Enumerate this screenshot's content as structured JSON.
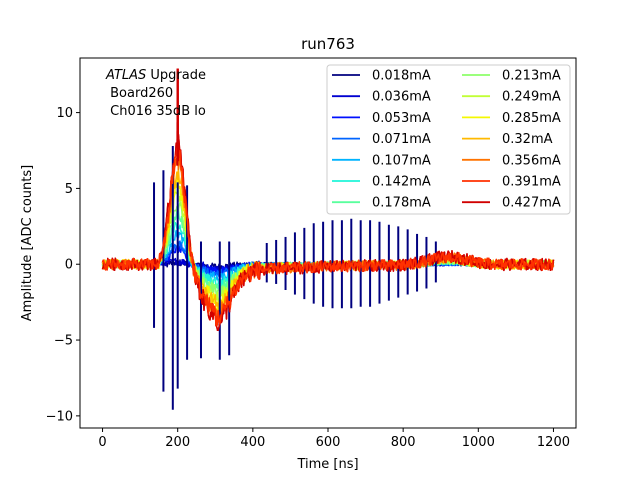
{
  "chart_data": {
    "type": "line",
    "title": "run763",
    "xlabel": "Time [ns]",
    "ylabel": "Amplitude [ADC counts]",
    "xlim": [
      -60,
      1260
    ],
    "ylim": [
      -10.8,
      13.6
    ],
    "xticks": [
      0,
      200,
      400,
      600,
      800,
      1000,
      1200
    ],
    "yticks": [
      -10,
      -5,
      0,
      5,
      10
    ],
    "xtick_labels": [
      "0",
      "200",
      "400",
      "600",
      "800",
      "1000",
      "1200"
    ],
    "ytick_labels": [
      "−10",
      "−5",
      "0",
      "5",
      "10"
    ],
    "grid": false,
    "legend_position": "top-right",
    "legend_columns": 2,
    "annotation": {
      "line1_italic": "ATLAS",
      "line1_rest": " Upgrade",
      "line2": " Board260",
      "line3": " Ch016 35dB lo"
    },
    "baseline_spike_heights": [
      {
        "t": 137,
        "v": 5.4,
        "neg": -4.2
      },
      {
        "t": 162,
        "v": 6.2,
        "neg": -8.4
      },
      {
        "t": 187,
        "v": 7.8,
        "neg": -9.6
      },
      {
        "t": 200,
        "v": 5.4,
        "neg": -8.2
      },
      {
        "t": 225,
        "v": 5.2,
        "neg": -6.3
      },
      {
        "t": 262,
        "v": 1.5,
        "neg": -6.2
      },
      {
        "t": 312,
        "v": 1.5,
        "neg": -6.3
      },
      {
        "t": 337,
        "v": 1.5,
        "neg": -6.0
      },
      {
        "t": 437,
        "v": 1.4,
        "neg": -1.2
      },
      {
        "t": 462,
        "v": 1.6,
        "neg": -1.3
      },
      {
        "t": 487,
        "v": 1.8,
        "neg": -1.7
      },
      {
        "t": 512,
        "v": 2.1,
        "neg": -2.0
      },
      {
        "t": 537,
        "v": 2.4,
        "neg": -2.3
      },
      {
        "t": 562,
        "v": 2.7,
        "neg": -2.6
      },
      {
        "t": 587,
        "v": 2.8,
        "neg": -2.8
      },
      {
        "t": 612,
        "v": 2.9,
        "neg": -2.9
      },
      {
        "t": 637,
        "v": 2.9,
        "neg": -2.9
      },
      {
        "t": 662,
        "v": 3.0,
        "neg": -2.9
      },
      {
        "t": 687,
        "v": 2.9,
        "neg": -2.8
      },
      {
        "t": 712,
        "v": 2.9,
        "neg": -2.8
      },
      {
        "t": 737,
        "v": 2.8,
        "neg": -2.6
      },
      {
        "t": 762,
        "v": 2.6,
        "neg": -2.4
      },
      {
        "t": 787,
        "v": 2.5,
        "neg": -2.2
      },
      {
        "t": 812,
        "v": 2.3,
        "neg": -2.0
      },
      {
        "t": 837,
        "v": 2.0,
        "neg": -1.8
      },
      {
        "t": 862,
        "v": 1.8,
        "neg": -1.6
      },
      {
        "t": 887,
        "v": 1.5,
        "neg": -1.2
      }
    ],
    "series": [
      {
        "name": "0.018mA",
        "amplitude": 0.018,
        "color": "#00007f"
      },
      {
        "name": "0.036mA",
        "amplitude": 0.036,
        "color": "#0000d1"
      },
      {
        "name": "0.053mA",
        "amplitude": 0.053,
        "color": "#0010ff"
      },
      {
        "name": "0.071mA",
        "amplitude": 0.071,
        "color": "#0064ff"
      },
      {
        "name": "0.107mA",
        "amplitude": 0.107,
        "color": "#00b4ff"
      },
      {
        "name": "0.142mA",
        "amplitude": 0.142,
        "color": "#1ff5d8"
      },
      {
        "name": "0.178mA",
        "amplitude": 0.178,
        "color": "#59ff9d"
      },
      {
        "name": "0.213mA",
        "amplitude": 0.213,
        "color": "#8dff6a"
      },
      {
        "name": "0.249mA",
        "amplitude": 0.249,
        "color": "#c1ff36"
      },
      {
        "name": "0.285mA",
        "amplitude": 0.285,
        "color": "#f4f802"
      },
      {
        "name": "0.32mA",
        "amplitude": 0.32,
        "color": "#ffb900"
      },
      {
        "name": "0.356mA",
        "amplitude": 0.356,
        "color": "#ff7300"
      },
      {
        "name": "0.391mA",
        "amplitude": 0.391,
        "color": "#ff3000"
      },
      {
        "name": "0.427mA",
        "amplitude": 0.427,
        "color": "#d10000"
      }
    ],
    "pulse_model": {
      "t0": 150,
      "peak_time": 200,
      "peak_value_max": 8.0,
      "undershoot_time": 300,
      "undershoot_value_max": -3.3,
      "bump_time": 920,
      "bump_value": 0.55,
      "x_range": [
        0,
        1200
      ],
      "red_spike": {
        "t": 200,
        "v": 12.9
      }
    }
  }
}
